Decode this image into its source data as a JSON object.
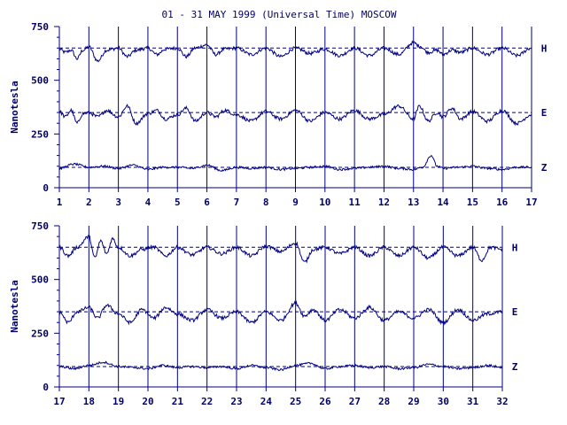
{
  "title": "01 - 31 MAY 1999 (Universal Time) MOSCOW",
  "colors": {
    "ink": "#000080",
    "text": "#000066",
    "background": "#ffffff"
  },
  "chart_data": [
    {
      "type": "line",
      "ylabel": "Nanotesla",
      "xlabel": "",
      "xlim": [
        1,
        17
      ],
      "ylim": [
        0,
        750
      ],
      "y_ticks": [
        "0",
        "250",
        "500",
        "750"
      ],
      "x_ticks": [
        "1",
        "2",
        "3",
        "4",
        "5",
        "6",
        "7",
        "8",
        "9",
        "10",
        "11",
        "12",
        "13",
        "14",
        "15",
        "16",
        "17"
      ],
      "grid": "vertical lines at each day",
      "series": [
        {
          "name": "H",
          "baseline": 650,
          "x": [
            1,
            1.2,
            1.4,
            1.6,
            1.8,
            2,
            2.3,
            2.6,
            3,
            3.3,
            3.6,
            4,
            4.3,
            4.6,
            5,
            5.3,
            5.6,
            6,
            6.3,
            6.6,
            7,
            7.5,
            8,
            8.5,
            9,
            9.5,
            10,
            10.5,
            11,
            11.5,
            12,
            12.5,
            13,
            13.2,
            13.5,
            13.8,
            14,
            14.3,
            14.6,
            15,
            15.5,
            16,
            16.5,
            17
          ],
          "y": [
            645,
            630,
            640,
            600,
            640,
            655,
            590,
            640,
            650,
            610,
            640,
            650,
            620,
            645,
            650,
            610,
            650,
            665,
            620,
            645,
            650,
            620,
            650,
            610,
            650,
            625,
            645,
            615,
            650,
            615,
            650,
            620,
            675,
            660,
            630,
            640,
            620,
            640,
            630,
            650,
            620,
            650,
            615,
            650
          ]
        },
        {
          "name": "E",
          "baseline": 350,
          "x": [
            1,
            1.2,
            1.4,
            1.6,
            1.8,
            2,
            2.3,
            2.6,
            3,
            3.3,
            3.6,
            4,
            4.3,
            4.6,
            5,
            5.3,
            5.6,
            6,
            6.3,
            6.6,
            7,
            7.5,
            8,
            8.5,
            9,
            9.5,
            10,
            10.5,
            11,
            11.5,
            12,
            12.5,
            13,
            13.2,
            13.5,
            13.8,
            14,
            14.3,
            14.6,
            15,
            15.5,
            16,
            16.5,
            17
          ],
          "y": [
            355,
            330,
            360,
            300,
            345,
            350,
            330,
            360,
            330,
            380,
            300,
            345,
            360,
            320,
            340,
            370,
            310,
            350,
            330,
            360,
            340,
            310,
            355,
            320,
            360,
            310,
            350,
            320,
            360,
            320,
            340,
            380,
            320,
            380,
            310,
            350,
            330,
            370,
            320,
            355,
            310,
            360,
            300,
            340
          ]
        },
        {
          "name": "Z",
          "baseline": 95,
          "x": [
            1,
            1.5,
            2,
            2.5,
            3,
            3.5,
            4,
            4.5,
            5,
            5.5,
            6,
            6.5,
            7,
            7.5,
            8,
            8.5,
            9,
            9.5,
            10,
            10.5,
            11,
            11.5,
            12,
            12.5,
            13,
            13.3,
            13.6,
            13.8,
            14,
            14.5,
            15,
            15.5,
            16,
            16.5,
            17
          ],
          "y": [
            90,
            110,
            95,
            100,
            90,
            105,
            85,
            95,
            95,
            90,
            105,
            80,
            95,
            90,
            95,
            85,
            90,
            95,
            100,
            85,
            90,
            95,
            100,
            90,
            85,
            95,
            150,
            100,
            90,
            95,
            100,
            90,
            85,
            95,
            95
          ]
        }
      ]
    },
    {
      "type": "line",
      "ylabel": "Nanotesla",
      "xlabel": "",
      "xlim": [
        17,
        32
      ],
      "ylim": [
        0,
        750
      ],
      "y_ticks": [
        "0",
        "250",
        "500",
        "750"
      ],
      "x_ticks": [
        "17",
        "18",
        "19",
        "20",
        "21",
        "22",
        "23",
        "24",
        "25",
        "26",
        "27",
        "28",
        "29",
        "30",
        "31",
        "32"
      ],
      "grid": "vertical lines at each day",
      "series": [
        {
          "name": "H",
          "baseline": 650,
          "x": [
            17,
            17.3,
            17.6,
            18,
            18.2,
            18.4,
            18.6,
            18.8,
            19,
            19.4,
            19.8,
            20.2,
            20.6,
            21,
            21.5,
            22,
            22.5,
            23,
            23.5,
            24,
            24.5,
            25,
            25.3,
            25.6,
            26,
            26.5,
            27,
            27.5,
            28,
            28.5,
            29,
            29.5,
            30,
            30.5,
            31,
            31.3,
            31.6,
            32
          ],
          "y": [
            650,
            610,
            650,
            700,
            600,
            680,
            620,
            690,
            650,
            610,
            640,
            650,
            610,
            650,
            615,
            650,
            620,
            650,
            610,
            655,
            630,
            670,
            580,
            640,
            650,
            620,
            650,
            610,
            650,
            610,
            650,
            600,
            650,
            610,
            650,
            590,
            650,
            640
          ]
        },
        {
          "name": "E",
          "baseline": 350,
          "x": [
            17,
            17.3,
            17.6,
            18,
            18.3,
            18.6,
            19,
            19.4,
            19.8,
            20.2,
            20.6,
            21,
            21.5,
            22,
            22.5,
            23,
            23.5,
            24,
            24.5,
            25,
            25.3,
            25.6,
            26,
            26.5,
            27,
            27.5,
            28,
            28.5,
            29,
            29.5,
            30,
            30.5,
            31,
            31.5,
            32
          ],
          "y": [
            350,
            300,
            350,
            370,
            320,
            380,
            340,
            300,
            360,
            320,
            370,
            340,
            310,
            360,
            320,
            350,
            300,
            350,
            310,
            390,
            330,
            360,
            310,
            360,
            320,
            370,
            310,
            350,
            320,
            360,
            300,
            360,
            310,
            340,
            350
          ]
        },
        {
          "name": "Z",
          "baseline": 95,
          "x": [
            17,
            17.5,
            18,
            18.5,
            19,
            19.5,
            20,
            20.5,
            21,
            21.5,
            22,
            22.5,
            23,
            23.5,
            24,
            24.5,
            25,
            25.5,
            26,
            26.5,
            27,
            27.5,
            28,
            28.5,
            29,
            29.5,
            30,
            30.5,
            31,
            31.5,
            32
          ],
          "y": [
            95,
            85,
            100,
            115,
            95,
            90,
            85,
            100,
            90,
            95,
            90,
            95,
            85,
            100,
            90,
            80,
            100,
            110,
            85,
            95,
            100,
            90,
            95,
            85,
            90,
            105,
            95,
            85,
            90,
            100,
            90
          ]
        }
      ]
    }
  ]
}
